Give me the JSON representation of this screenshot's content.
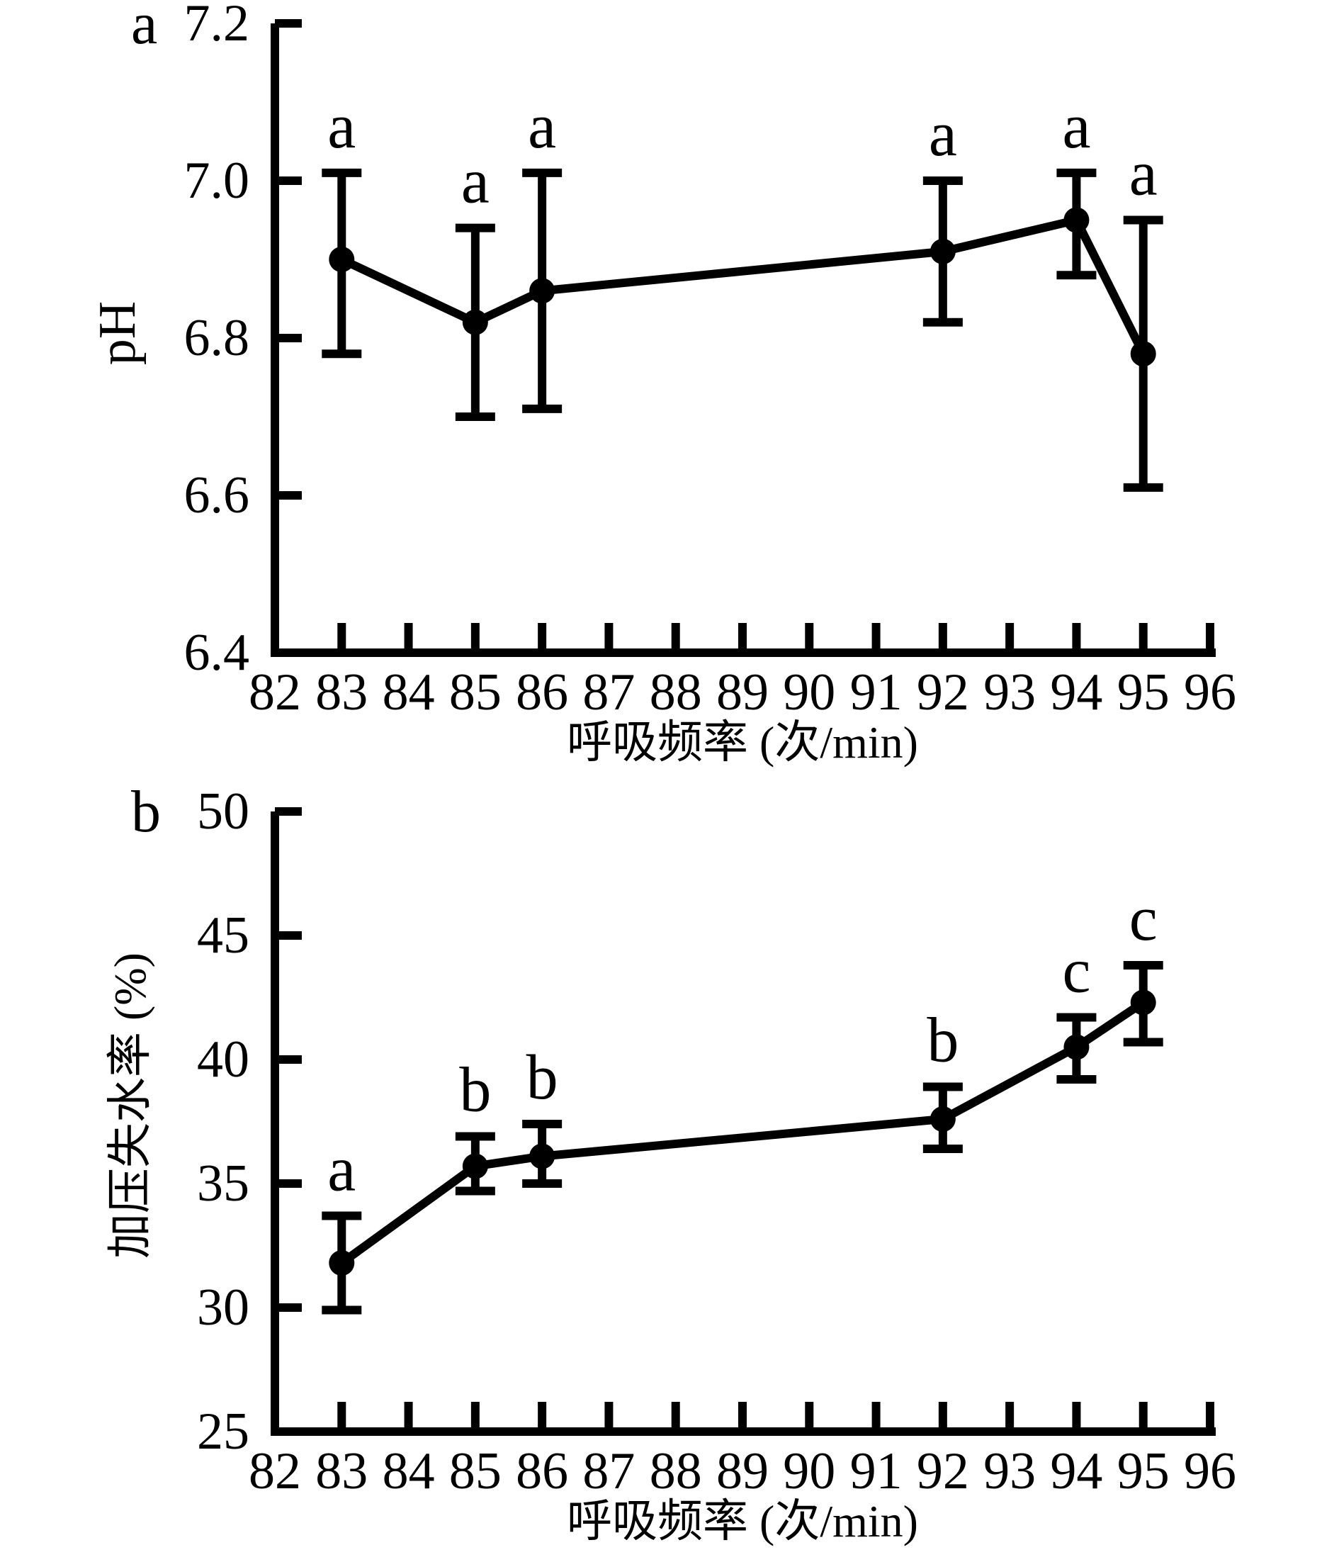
{
  "figure": {
    "background": "#ffffff",
    "ink": "#000000"
  },
  "chart_data": [
    {
      "type": "line",
      "panel_label": "a",
      "xlabel": "呼吸频率 (次/min)",
      "ylabel": "pH",
      "x": [
        83,
        85,
        86,
        92,
        94,
        95
      ],
      "y": [
        6.9,
        6.82,
        6.86,
        6.91,
        6.95,
        6.78
      ],
      "y_err_low": [
        6.78,
        6.7,
        6.71,
        6.82,
        6.88,
        6.61
      ],
      "y_err_high": [
        7.01,
        6.94,
        7.01,
        7.0,
        7.01,
        6.95
      ],
      "point_labels": [
        "a",
        "a",
        "a",
        "a",
        "a",
        "a"
      ],
      "xlim": [
        82,
        96
      ],
      "xticks": [
        82,
        83,
        84,
        85,
        86,
        87,
        88,
        89,
        90,
        91,
        92,
        93,
        94,
        95,
        96
      ],
      "ylim": [
        6.4,
        7.2
      ],
      "yticks": [
        6.4,
        6.6,
        6.8,
        7.0,
        7.2
      ],
      "ytick_labels": [
        "6.4",
        "6.6",
        "6.8",
        "7.0",
        "7.2"
      ],
      "grid": false,
      "legend": null,
      "marker": "filled-circle",
      "line_color": "#000000"
    },
    {
      "type": "line",
      "panel_label": "b",
      "xlabel": "呼吸频率 (次/min)",
      "ylabel": "加压失水率 (%)",
      "x": [
        83,
        85,
        86,
        92,
        94,
        95
      ],
      "y": [
        31.8,
        35.7,
        36.1,
        37.6,
        40.5,
        42.3
      ],
      "y_err_low": [
        29.9,
        34.7,
        35.0,
        36.4,
        39.2,
        40.7
      ],
      "y_err_high": [
        33.7,
        36.9,
        37.4,
        38.9,
        41.7,
        43.8
      ],
      "point_labels": [
        "a",
        "b",
        "b",
        "b",
        "c",
        "c"
      ],
      "xlim": [
        82,
        96
      ],
      "xticks": [
        82,
        83,
        84,
        85,
        86,
        87,
        88,
        89,
        90,
        91,
        92,
        93,
        94,
        95,
        96
      ],
      "ylim": [
        25,
        50
      ],
      "yticks": [
        25,
        30,
        35,
        40,
        45,
        50
      ],
      "ytick_labels": [
        "25",
        "30",
        "35",
        "40",
        "45",
        "50"
      ],
      "grid": false,
      "legend": null,
      "marker": "filled-circle",
      "line_color": "#000000"
    }
  ]
}
